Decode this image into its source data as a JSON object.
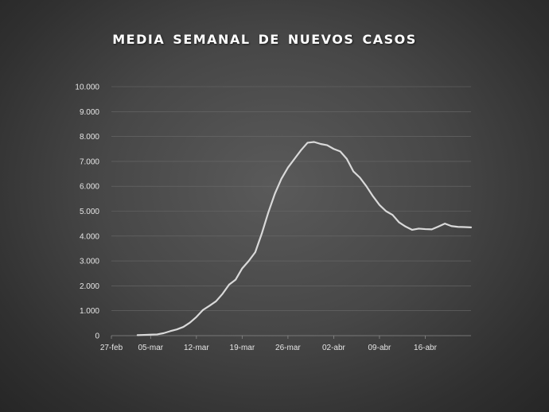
{
  "chart_data": {
    "type": "line",
    "title": "MEDIA SEMANAL DE NUEVOS CASOS",
    "xlabel": "",
    "ylabel": "",
    "ylim": [
      0,
      10000
    ],
    "y_ticks": [
      0,
      1000,
      2000,
      3000,
      4000,
      5000,
      6000,
      7000,
      8000,
      9000,
      10000
    ],
    "y_tick_labels": [
      "0",
      "1.000",
      "2.000",
      "3.000",
      "4.000",
      "5.000",
      "6.000",
      "7.000",
      "8.000",
      "9.000",
      "10.000"
    ],
    "x_tick_labels": [
      "27-feb",
      "05-mar",
      "12-mar",
      "19-mar",
      "26-mar",
      "02-abr",
      "09-abr",
      "16-abr"
    ],
    "x_range": [
      "27-feb",
      "23-abr"
    ],
    "grid": true,
    "legend": "none",
    "series": [
      {
        "color": "#d9d9d9",
        "x": [
          "03-mar",
          "04-mar",
          "05-mar",
          "06-mar",
          "07-mar",
          "08-mar",
          "09-mar",
          "10-mar",
          "11-mar",
          "12-mar",
          "13-mar",
          "14-mar",
          "15-mar",
          "16-mar",
          "17-mar",
          "18-mar",
          "19-mar",
          "20-mar",
          "21-mar",
          "22-mar",
          "23-mar",
          "24-mar",
          "25-mar",
          "26-mar",
          "27-mar",
          "28-mar",
          "29-mar",
          "30-mar",
          "31-mar",
          "01-abr",
          "02-abr",
          "03-abr",
          "04-abr",
          "05-abr",
          "06-abr",
          "07-abr",
          "08-abr",
          "09-abr",
          "10-abr",
          "11-abr",
          "12-abr",
          "13-abr",
          "14-abr",
          "15-abr",
          "16-abr",
          "17-abr",
          "18-abr",
          "19-abr",
          "20-abr",
          "21-abr",
          "22-abr",
          "23-abr"
        ],
        "values": [
          20,
          30,
          40,
          50,
          100,
          180,
          250,
          350,
          520,
          750,
          1030,
          1200,
          1380,
          1680,
          2050,
          2250,
          2700,
          3000,
          3350,
          4100,
          4950,
          5700,
          6300,
          6750,
          7100,
          7450,
          7750,
          7780,
          7700,
          7650,
          7500,
          7400,
          7100,
          6600,
          6350,
          6000,
          5600,
          5250,
          5000,
          4850,
          4550,
          4380,
          4250,
          4300,
          4280,
          4270,
          4380,
          4500,
          4400,
          4370,
          4360,
          4350
        ]
      }
    ]
  }
}
